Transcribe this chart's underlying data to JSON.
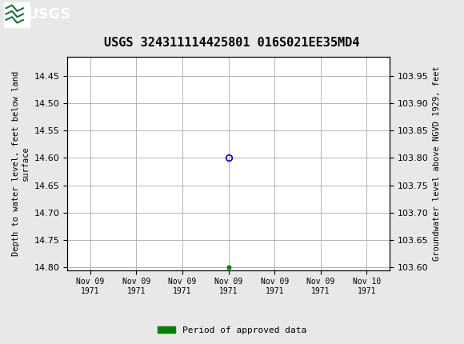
{
  "title": "USGS 324311114425801 016S021EE35MD4",
  "title_fontsize": 11,
  "ylabel_left": "Depth to water level, feet below land\nsurface",
  "ylabel_right": "Groundwater level above NGVD 1929, feet",
  "ylim_left": [
    14.805,
    14.415
  ],
  "ylim_right": [
    103.595,
    103.985
  ],
  "yticks_left": [
    14.45,
    14.5,
    14.55,
    14.6,
    14.65,
    14.7,
    14.75,
    14.8
  ],
  "yticks_right": [
    103.95,
    103.9,
    103.85,
    103.8,
    103.75,
    103.7,
    103.65,
    103.6
  ],
  "data_point_x": 3,
  "data_point_y": 14.6,
  "data_point_color": "#0000bb",
  "data_marker_color": "#008000",
  "data_marker_y": 14.8,
  "background_color": "#e8e8e8",
  "plot_bg_color": "#ffffff",
  "grid_color": "#aaaaaa",
  "header_bg_color": "#1a6e3c",
  "header_text_color": "#ffffff",
  "legend_label": "Period of approved data",
  "legend_color": "#008000",
  "xtick_labels": [
    "Nov 09\n1971",
    "Nov 09\n1971",
    "Nov 09\n1971",
    "Nov 09\n1971",
    "Nov 09\n1971",
    "Nov 09\n1971",
    "Nov 10\n1971"
  ],
  "xtick_positions": [
    0,
    1,
    2,
    3,
    4,
    5,
    6
  ]
}
